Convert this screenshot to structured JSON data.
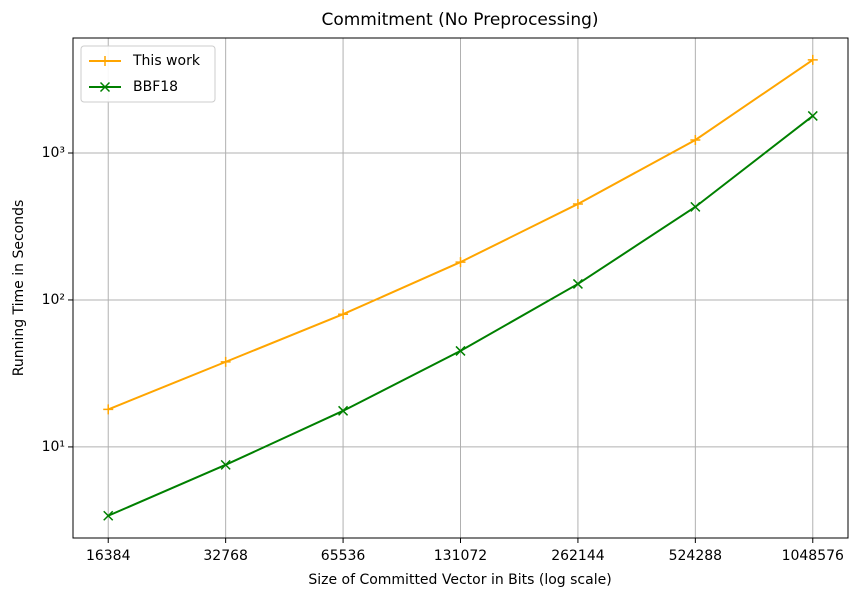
{
  "chart_data": {
    "type": "line",
    "title": "Commitment (No Preprocessing)",
    "xlabel": "Size of Committed Vector in Bits (log scale)",
    "ylabel": "Running Time in Seconds",
    "x": [
      16384,
      32768,
      65536,
      131072,
      262144,
      524288,
      1048576
    ],
    "series": [
      {
        "name": "This work",
        "color": "#ffa500",
        "marker": "+",
        "values": [
          18,
          37.9,
          80,
          181,
          450,
          1226,
          4300
        ]
      },
      {
        "name": "BBF18",
        "color": "#008000",
        "marker": "x",
        "values": [
          3.4,
          7.55,
          17.6,
          45,
          128.5,
          430,
          1787
        ]
      }
    ],
    "xscale": "log",
    "yscale": "log",
    "xlim": [
      13308,
      1290948
    ],
    "ylim": [
      2.4,
      6060
    ],
    "xticks": [
      16384,
      32768,
      65536,
      131072,
      262144,
      524288,
      1048576
    ],
    "yticks": [
      {
        "value": 10,
        "label": "10¹"
      },
      {
        "value": 100,
        "label": "10²"
      },
      {
        "value": 1000,
        "label": "10³"
      }
    ],
    "grid": true,
    "legend": "upper left"
  }
}
